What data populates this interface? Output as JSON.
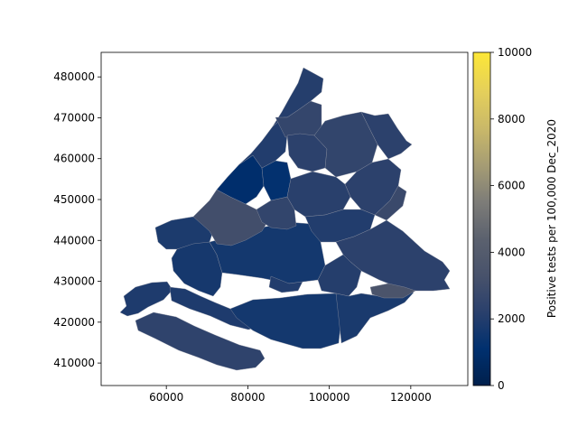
{
  "chart_data": {
    "type": "choropleth",
    "xlabel": "",
    "ylabel": "",
    "xlim": [
      44000,
      134000
    ],
    "ylim": [
      404500,
      486000
    ],
    "x_ticks": [
      60000,
      80000,
      100000,
      120000
    ],
    "y_ticks": [
      410000,
      420000,
      430000,
      440000,
      450000,
      460000,
      470000,
      480000
    ],
    "colorbar": {
      "label": "Positive tests per 100,000 Dec_2020",
      "min": 0,
      "max": 10000,
      "ticks": [
        0,
        2000,
        4000,
        6000,
        8000,
        10000
      ],
      "colormap": "cividis",
      "colors": [
        "#00204c",
        "#00306f",
        "#2a406c",
        "#48526b",
        "#5b616e",
        "#7d7c78",
        "#a59c74",
        "#c9b869",
        "#f1d846",
        "#fde737"
      ]
    },
    "regions": [
      {
        "id": "goeree-overflakkee",
        "value": 2400
      },
      {
        "id": "voorne-putten-west",
        "value": 1900
      },
      {
        "id": "voorne-putten-east",
        "value": 1900
      },
      {
        "id": "hoeksche-waard",
        "value": 1650
      },
      {
        "id": "westland",
        "value": 1850
      },
      {
        "id": "maassluis-area",
        "value": 1700
      },
      {
        "id": "rotterdam",
        "value": 1650
      },
      {
        "id": "den-haag",
        "value": 3100
      },
      {
        "id": "delft-area",
        "value": 2500
      },
      {
        "id": "wassenaar-coast",
        "value": 1000
      },
      {
        "id": "leiden-area",
        "value": 1200
      },
      {
        "id": "katwijk",
        "value": 2000
      },
      {
        "id": "noordwijk",
        "value": 2100
      },
      {
        "id": "lisse-teylingen",
        "value": 2600
      },
      {
        "id": "kaag-braassem",
        "value": 2300
      },
      {
        "id": "alphen",
        "value": 2500
      },
      {
        "id": "bodegraven",
        "value": 2300
      },
      {
        "id": "gouda-krimpenerwaard",
        "value": 2300
      },
      {
        "id": "zuidplas",
        "value": 2200
      },
      {
        "id": "lansingerland",
        "value": 2000
      },
      {
        "id": "east-bump",
        "value": 2800
      },
      {
        "id": "gorinchem-area",
        "value": 2300
      },
      {
        "id": "molenlanden",
        "value": 2100
      },
      {
        "id": "dordrecht",
        "value": 1800
      },
      {
        "id": "zwijndrecht",
        "value": 2000
      },
      {
        "id": "alblasserwaard-hotspot",
        "value": 3500
      }
    ]
  }
}
